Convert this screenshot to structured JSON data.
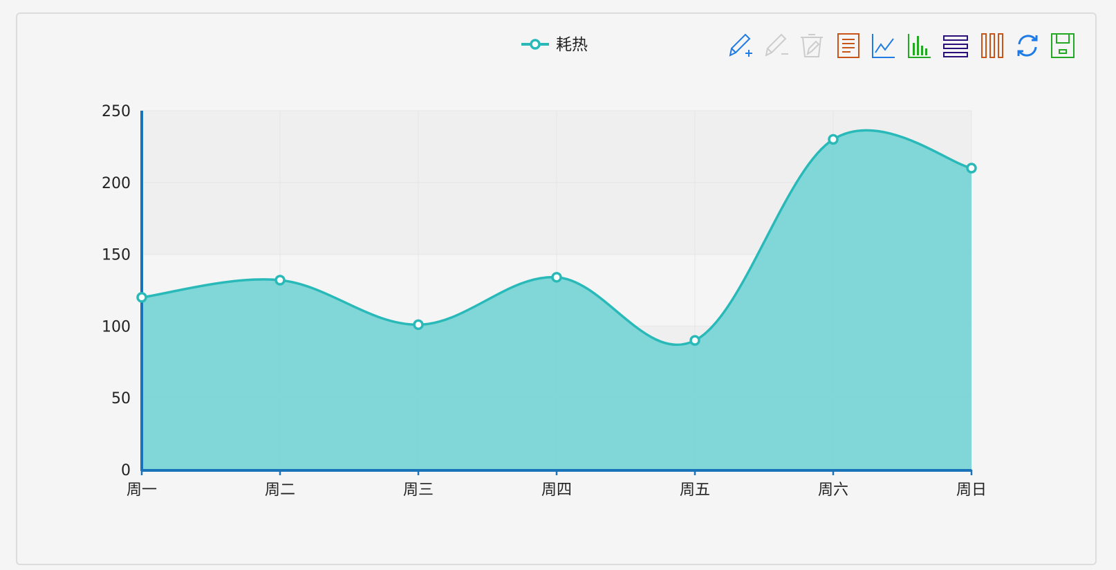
{
  "legend": {
    "label": "耗热",
    "color": "#2ab9b9"
  },
  "toolbar": {
    "tools": [
      {
        "icon": "mark-pen-plus-icon",
        "color": "#1e7be6"
      },
      {
        "icon": "mark-pen-minus-icon",
        "color": "#cccccc"
      },
      {
        "icon": "clear-marks-icon",
        "color": "#cccccc"
      },
      {
        "icon": "data-view-icon",
        "color": "#c8541a"
      },
      {
        "icon": "line-chart-icon",
        "color": "#1e7be6"
      },
      {
        "icon": "bar-chart-icon",
        "color": "#22a821"
      },
      {
        "icon": "stack-icon",
        "color": "#2a0f7a"
      },
      {
        "icon": "tiled-icon",
        "color": "#c8541a"
      },
      {
        "icon": "restore-icon",
        "color": "#1e7be6"
      },
      {
        "icon": "save-image-icon",
        "color": "#22a821"
      }
    ]
  },
  "chart_data": {
    "type": "area",
    "categories": [
      "周一",
      "周二",
      "周三",
      "周四",
      "周五",
      "周六",
      "周日"
    ],
    "series": [
      {
        "name": "耗热",
        "values": [
          120,
          132,
          101,
          134,
          90,
          230,
          210
        ]
      }
    ],
    "ylim": [
      0,
      250
    ],
    "yticks": [
      0,
      50,
      100,
      150,
      200,
      250
    ],
    "smooth": true,
    "grid": true,
    "legend_position": "top-center",
    "colors": {
      "line": "#2ab9b9",
      "area": "#74d4d4",
      "axis": "#1a73b8",
      "band": "#efefef",
      "grid": "#e6e6e6"
    }
  }
}
